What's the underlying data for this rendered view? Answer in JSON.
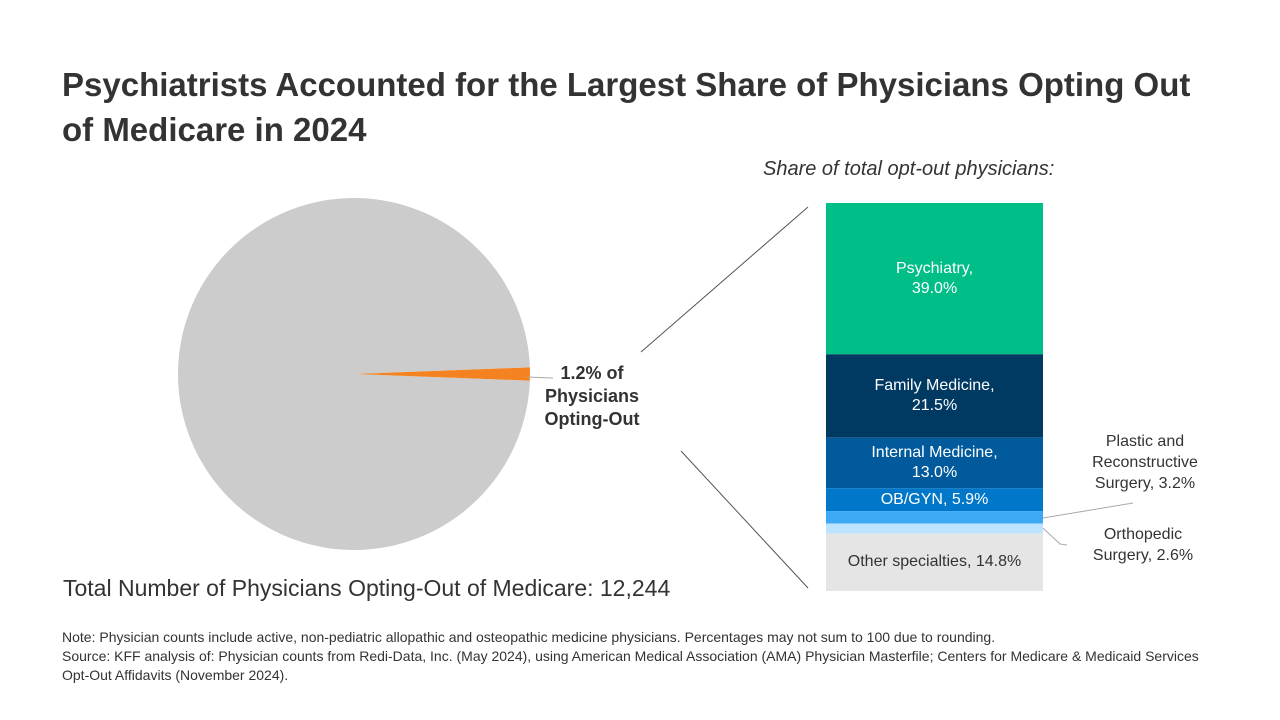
{
  "title": "Psychiatrists Accounted for the Largest Share of Physicians Opting Out of Medicare in 2024",
  "subtitle": "Share of total opt-out physicians:",
  "pie_label": "1.2% of Physicians Opting-Out",
  "total_label": "Total Number of Physicians Opting-Out of Medicare: 12,244",
  "note": "Note: Physician counts include active, non-pediatric allopathic and osteopathic medicine physicians. Percentages may not sum to 100 due to rounding.",
  "source": "Source: KFF analysis of: Physician counts from Redi-Data, Inc. (May 2024), using American Medical Association (AMA) Physician Masterfile; Centers for Medicare & Medicaid Services Opt-Out Affidavits (November 2024).",
  "chart_data": [
    {
      "type": "pie",
      "slices": [
        {
          "name": "Opting-Out",
          "value": 1.2,
          "color": "#F58220"
        },
        {
          "name": "Not opting out",
          "value": 98.8,
          "color": "#CCCCCC"
        }
      ]
    },
    {
      "type": "bar",
      "stacked": true,
      "title": "Share of total opt-out physicians:",
      "unit": "%",
      "series": [
        {
          "name": "Psychiatry",
          "value": 39.0,
          "color": "#00BE88"
        },
        {
          "name": "Family Medicine",
          "value": 21.5,
          "color": "#003A63"
        },
        {
          "name": "Internal Medicine",
          "value": 13.0,
          "color": "#005A9C"
        },
        {
          "name": "OB/GYN",
          "value": 5.9,
          "color": "#0077C8"
        },
        {
          "name": "Plastic and Reconstructive Surgery",
          "value": 3.2,
          "color": "#3DA9F5"
        },
        {
          "name": "Orthopedic Surgery",
          "value": 2.6,
          "color": "#BDE3FF"
        },
        {
          "name": "Other specialties",
          "value": 14.8,
          "color": "#E5E5E5"
        }
      ]
    }
  ]
}
